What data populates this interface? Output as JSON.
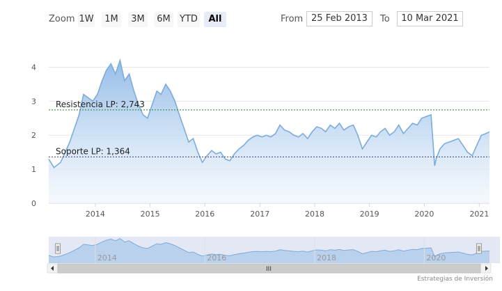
{
  "toolbar": {
    "zoom_label": "Zoom",
    "zoom_buttons": [
      "1W",
      "1M",
      "3M",
      "6M",
      "YTD",
      "All"
    ],
    "active_zoom": "All",
    "from_label": "From",
    "from_value": "25 Feb 2013",
    "to_label": "To",
    "to_value": "10 Mar 2021"
  },
  "credits": "Estrategias de Inversión",
  "colors": {
    "series_line": "#7cabdc",
    "series_fill_top": "#8fb9e6",
    "series_fill_bottom": "#eef5fc",
    "resistance_line": "#2e7d32",
    "support_line": "#3b3b6e",
    "navigator_mask": "#ccd6eb"
  },
  "chart_data": {
    "type": "area",
    "x_axis_type": "date",
    "y_range": [
      0,
      4.5
    ],
    "y_ticks": [
      0,
      1,
      2,
      3,
      4
    ],
    "x_range": [
      "2013-02-25",
      "2021-03-10"
    ],
    "x_ticks": [
      "2014",
      "2015",
      "2016",
      "2017",
      "2018",
      "2019",
      "2020",
      "2021"
    ],
    "grid": true,
    "series": [
      {
        "x": [
          "2013-02-25",
          "2013-04-01",
          "2013-05-15",
          "2013-06-15",
          "2013-07-15",
          "2013-08-15",
          "2013-09-15",
          "2013-10-15",
          "2013-11-15",
          "2013-12-15",
          "2014-01-15",
          "2014-02-15",
          "2014-03-15",
          "2014-04-15",
          "2014-05-15",
          "2014-06-15",
          "2014-07-15",
          "2014-08-15",
          "2014-09-15",
          "2014-10-15",
          "2014-11-15",
          "2014-12-15",
          "2015-01-15",
          "2015-02-15",
          "2015-03-15",
          "2015-04-15",
          "2015-05-15",
          "2015-06-15",
          "2015-07-15",
          "2015-08-15",
          "2015-09-15",
          "2015-10-15",
          "2015-11-15",
          "2015-12-15",
          "2016-01-15",
          "2016-02-15",
          "2016-03-15",
          "2016-04-15",
          "2016-05-15",
          "2016-06-15",
          "2016-07-15",
          "2016-08-15",
          "2016-09-15",
          "2016-10-15",
          "2016-11-15",
          "2016-12-15",
          "2017-01-15",
          "2017-02-15",
          "2017-03-15",
          "2017-04-15",
          "2017-05-15",
          "2017-06-15",
          "2017-07-15",
          "2017-08-15",
          "2017-09-15",
          "2017-10-15",
          "2017-11-15",
          "2017-12-15",
          "2018-01-15",
          "2018-02-15",
          "2018-03-15",
          "2018-04-15",
          "2018-05-15",
          "2018-06-15",
          "2018-07-15",
          "2018-08-15",
          "2018-09-15",
          "2018-10-15",
          "2018-11-15",
          "2018-12-15",
          "2019-01-15",
          "2019-02-15",
          "2019-03-15",
          "2019-04-15",
          "2019-05-15",
          "2019-06-15",
          "2019-07-15",
          "2019-08-15",
          "2019-09-15",
          "2019-10-15",
          "2019-11-15",
          "2019-12-15",
          "2020-01-15",
          "2020-02-15",
          "2020-03-10",
          "2020-03-20",
          "2020-04-15",
          "2020-05-15",
          "2020-06-15",
          "2020-07-15",
          "2020-08-15",
          "2020-09-15",
          "2020-10-15",
          "2020-11-15",
          "2020-12-15",
          "2021-01-15",
          "2021-02-15",
          "2021-03-10"
        ],
        "values": [
          1.3,
          1.05,
          1.2,
          1.5,
          1.8,
          2.2,
          2.6,
          3.2,
          3.1,
          3.0,
          3.2,
          3.6,
          3.9,
          4.1,
          3.8,
          4.2,
          3.6,
          3.8,
          3.3,
          2.9,
          2.6,
          2.5,
          2.9,
          3.3,
          3.2,
          3.5,
          3.3,
          3.0,
          2.6,
          2.2,
          1.8,
          1.9,
          1.5,
          1.2,
          1.4,
          1.55,
          1.45,
          1.5,
          1.3,
          1.25,
          1.45,
          1.6,
          1.7,
          1.85,
          1.95,
          2.0,
          1.95,
          2.0,
          1.95,
          2.05,
          2.3,
          2.15,
          2.1,
          2.0,
          1.95,
          2.05,
          1.9,
          2.1,
          2.25,
          2.2,
          2.1,
          2.3,
          2.2,
          2.35,
          2.15,
          2.25,
          2.3,
          2.0,
          1.6,
          1.8,
          2.0,
          1.95,
          2.1,
          2.2,
          2.0,
          2.1,
          2.3,
          2.05,
          2.2,
          2.35,
          2.3,
          2.5,
          2.55,
          2.6,
          1.1,
          1.3,
          1.6,
          1.75,
          1.8,
          1.85,
          1.9,
          1.7,
          1.5,
          1.4,
          1.7,
          2.0,
          2.05,
          2.1
        ]
      }
    ],
    "plot_lines": [
      {
        "label": "Resistencia LP: 2,743",
        "value": 2.743
      },
      {
        "label": "Soporte LP: 1,364",
        "value": 1.364
      }
    ],
    "navigator_x_ticks": [
      "2014",
      "2016",
      "2018",
      "2020"
    ],
    "scrollbar_grip": "III"
  }
}
